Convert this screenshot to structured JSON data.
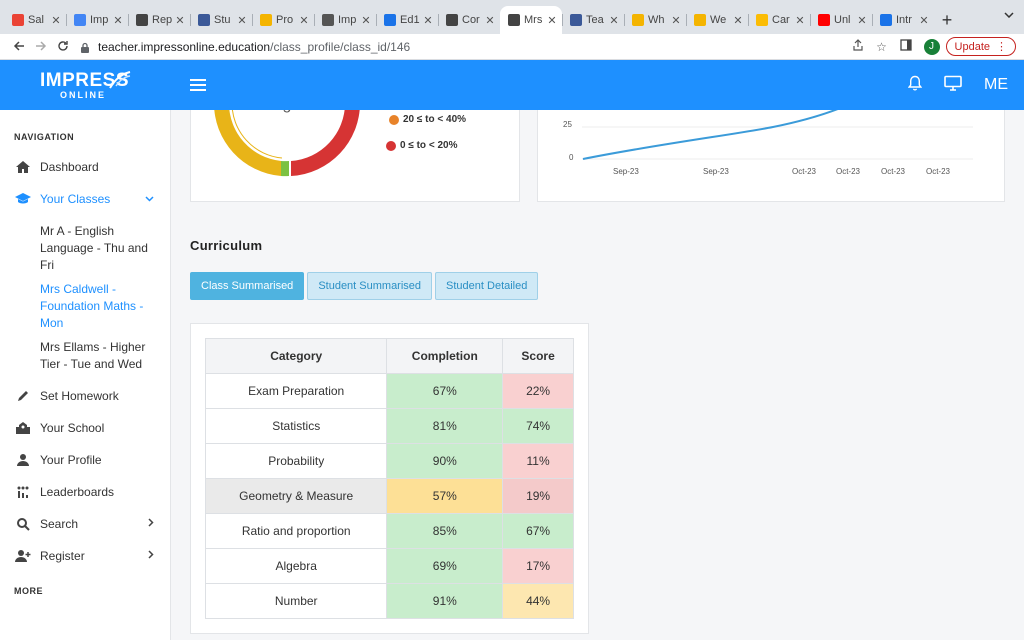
{
  "browser": {
    "tabs": [
      {
        "label": "Sal",
        "color": "#ea4335",
        "active": false
      },
      {
        "label": "Imp",
        "color": "#4285f4",
        "active": false
      },
      {
        "label": "Rep",
        "color": "#444444",
        "active": false
      },
      {
        "label": "Stu",
        "color": "#3b5998",
        "active": false
      },
      {
        "label": "Pro",
        "color": "#f4b400",
        "active": false
      },
      {
        "label": "Imp",
        "color": "#555555",
        "active": false
      },
      {
        "label": "Ed1",
        "color": "#1a73e8",
        "active": false
      },
      {
        "label": "Cor",
        "color": "#444444",
        "active": false
      },
      {
        "label": "Mrs",
        "color": "#444444",
        "active": true
      },
      {
        "label": "Tea",
        "color": "#3b5998",
        "active": false
      },
      {
        "label": "Wh",
        "color": "#f4b400",
        "active": false
      },
      {
        "label": "We",
        "color": "#f4b400",
        "active": false
      },
      {
        "label": "Car",
        "color": "#fbbc04",
        "active": false
      },
      {
        "label": "Unl",
        "color": "#ff0000",
        "active": false
      },
      {
        "label": "Intr",
        "color": "#1a73e8",
        "active": false
      }
    ],
    "url_host": "teacher.impressonline.education",
    "url_path": "/class_profile/class_id/146",
    "profile_initial": "J",
    "update_label": "Update"
  },
  "header": {
    "logo_main": "IMPRESS",
    "logo_sub": "ONLINE",
    "me_label": "ME"
  },
  "sidebar": {
    "nav_heading": "NAVIGATION",
    "dashboard": "Dashboard",
    "your_classes": "Your Classes",
    "classes": [
      "Mr A - English Language - Thu and Fri",
      "Mrs Caldwell - Foundation Maths - Mon",
      "Mrs Ellams - Higher Tier - Tue and Wed"
    ],
    "set_homework": "Set Homework",
    "your_school": "Your School",
    "your_profile": "Your Profile",
    "leaderboards": "Leaderboards",
    "search": "Search",
    "register": "Register",
    "more_heading": "MORE"
  },
  "donut": {
    "legend": [
      {
        "label": "20 ≤ to < 40%",
        "color": "#e8832a"
      },
      {
        "label": "0 ≤ to < 20%",
        "color": "#d63434"
      }
    ],
    "center_glyph": "g"
  },
  "line_chart": {
    "y_ticks": [
      "25",
      "0"
    ],
    "x_ticks": [
      "Sep-23",
      "Sep-23",
      "Oct-23",
      "Oct-23",
      "Oct-23",
      "Oct-23"
    ],
    "color": "#3b9bd9"
  },
  "curriculum": {
    "title": "Curriculum",
    "tabs": [
      "Class Summarised",
      "Student Summarised",
      "Student Detailed"
    ],
    "headers": [
      "Category",
      "Completion",
      "Score"
    ],
    "rows": [
      {
        "category": "Exam Preparation",
        "completion": "67%",
        "score": "22%"
      },
      {
        "category": "Statistics",
        "completion": "81%",
        "score": "74%"
      },
      {
        "category": "Probability",
        "completion": "90%",
        "score": "11%"
      },
      {
        "category": "Geometry & Measure",
        "completion": "57%",
        "score": "19%"
      },
      {
        "category": "Ratio and proportion",
        "completion": "85%",
        "score": "67%"
      },
      {
        "category": "Algebra",
        "completion": "69%",
        "score": "17%"
      },
      {
        "category": "Number",
        "completion": "91%",
        "score": "44%"
      }
    ]
  }
}
